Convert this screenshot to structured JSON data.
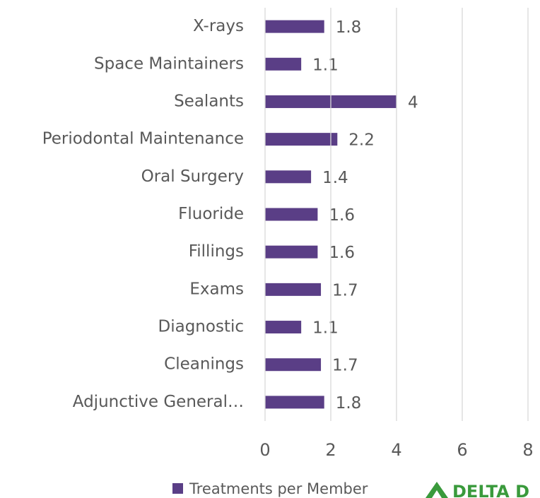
{
  "chart_data": {
    "type": "bar",
    "orientation": "horizontal",
    "categories": [
      "X-rays",
      "Space Maintainers",
      "Sealants",
      "Periodontal Maintenance",
      "Oral Surgery",
      "Fluoride",
      "Fillings",
      "Exams",
      "Diagnostic",
      "Cleanings",
      "Adjunctive General…"
    ],
    "series": [
      {
        "name": "Treatments per Member",
        "color": "#5a3e86",
        "values": [
          1.8,
          1.1,
          4,
          2.2,
          1.4,
          1.6,
          1.6,
          1.7,
          1.1,
          1.7,
          1.8
        ]
      }
    ],
    "xlim": [
      0,
      8
    ],
    "xticks": [
      0,
      2,
      4,
      6,
      8
    ],
    "grid": true,
    "legend": "bottom",
    "logo_text": "DELTA D"
  }
}
